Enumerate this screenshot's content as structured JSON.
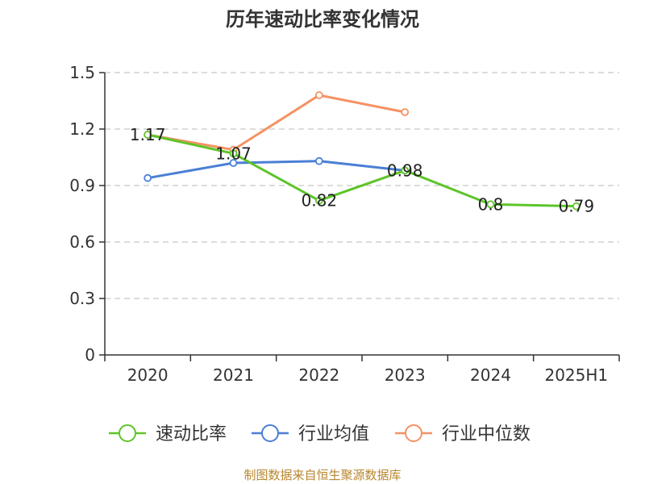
{
  "colors": {
    "speed_ratio": "#5ec42a",
    "industry_avg": "#4a7fd6",
    "industry_median": "#f59263",
    "grid": "#c8c8c8",
    "axis": "#333333",
    "source": "#b8862e"
  },
  "source_text": "制图数据来自恒生聚源数据库",
  "chart_data": {
    "type": "line",
    "title": "历年速动比率变化情况",
    "xlabel": "",
    "ylabel": "",
    "categories": [
      "2020",
      "2021",
      "2022",
      "2023",
      "2024",
      "2025H1"
    ],
    "ylim": [
      0,
      1.5
    ],
    "yticks": [
      "0",
      "0.3",
      "0.6",
      "0.9",
      "1.2",
      "1.5"
    ],
    "grid": true,
    "legend_position": "bottom",
    "series": [
      {
        "name": "速动比率",
        "color": "#5ec42a",
        "values": [
          1.17,
          1.07,
          0.82,
          0.98,
          0.8,
          0.79
        ],
        "labels": [
          "1.17",
          "1.07",
          "0.82",
          "0.98",
          "0.8",
          "0.79"
        ]
      },
      {
        "name": "行业均值",
        "color": "#4a7fd6",
        "values": [
          0.94,
          1.02,
          1.03,
          0.98,
          null,
          null
        ]
      },
      {
        "name": "行业中位数",
        "color": "#f59263",
        "values": [
          1.17,
          1.09,
          1.38,
          1.29,
          null,
          null
        ]
      }
    ]
  }
}
